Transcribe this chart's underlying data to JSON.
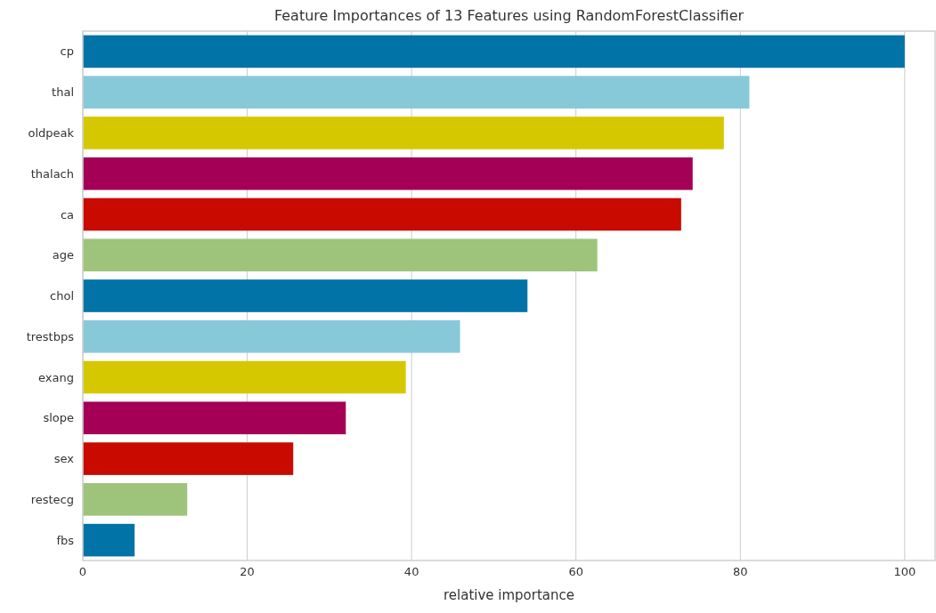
{
  "chart_data": {
    "type": "bar",
    "orientation": "horizontal",
    "title": "Feature Importances of 13 Features using RandomForestClassifier",
    "xlabel": "relative importance",
    "categories": [
      "cp",
      "thal",
      "oldpeak",
      "thalach",
      "ca",
      "age",
      "chol",
      "trestbps",
      "exang",
      "slope",
      "sex",
      "restecg",
      "fbs"
    ],
    "values": [
      100,
      81.1,
      78.0,
      74.2,
      72.8,
      62.6,
      54.1,
      45.9,
      39.3,
      32.0,
      25.6,
      12.7,
      6.3
    ],
    "colors": [
      "#0173a6",
      "#88c9d9",
      "#d6c800",
      "#a30056",
      "#c80a00",
      "#9dc47a",
      "#0173a6",
      "#88c9d9",
      "#d6c800",
      "#a30056",
      "#c80a00",
      "#9dc47a",
      "#0173a6"
    ],
    "xlim": [
      0,
      103.7
    ],
    "xticks": [
      0,
      20,
      40,
      60,
      80,
      100
    ],
    "grid": "x"
  }
}
